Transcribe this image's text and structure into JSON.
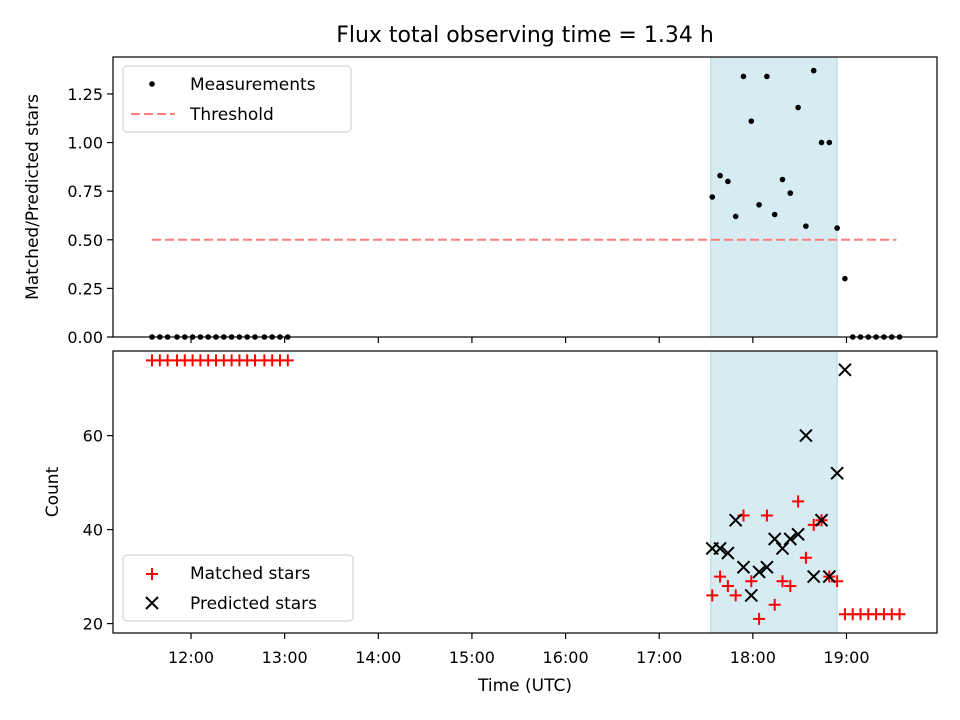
{
  "title": "Flux total observing time = 1.34 h",
  "colors": {
    "measurement": "#000000",
    "threshold": "#ff7f7f",
    "matched": "#ff0000",
    "predicted": "#000000",
    "span": "#add8e6"
  },
  "chart_data": [
    {
      "type": "scatter",
      "ylabel": "Matched/Predicted stars",
      "xlim": [
        "11:10",
        "19:58"
      ],
      "ylim": [
        0,
        1.44
      ],
      "yticks": [
        "0.00",
        "0.25",
        "0.50",
        "0.75",
        "1.00",
        "1.25"
      ],
      "xticks_shown": false,
      "highlight_span": [
        "17:33",
        "18:54"
      ],
      "legend": {
        "placement": "top-left",
        "entries": [
          "Measurements",
          "Threshold"
        ]
      },
      "threshold": {
        "name": "Threshold",
        "value": 0.5,
        "x": [
          "11:35",
          "19:32"
        ]
      },
      "series": [
        {
          "name": "Measurements",
          "marker": "dot",
          "points": [
            [
              "11:35",
              0
            ],
            [
              "11:40",
              0
            ],
            [
              "11:45",
              0
            ],
            [
              "11:51",
              0
            ],
            [
              "11:56",
              0
            ],
            [
              "12:01",
              0
            ],
            [
              "12:06",
              0
            ],
            [
              "12:11",
              0
            ],
            [
              "12:16",
              0
            ],
            [
              "12:21",
              0
            ],
            [
              "12:26",
              0
            ],
            [
              "12:31",
              0
            ],
            [
              "12:36",
              0
            ],
            [
              "12:41",
              0
            ],
            [
              "12:47",
              0
            ],
            [
              "12:52",
              0
            ],
            [
              "12:57",
              0
            ],
            [
              "13:02",
              0
            ],
            [
              "17:34",
              0.72
            ],
            [
              "17:39",
              0.83
            ],
            [
              "17:44",
              0.8
            ],
            [
              "17:49",
              0.62
            ],
            [
              "17:54",
              1.34
            ],
            [
              "17:59",
              1.11
            ],
            [
              "18:04",
              0.68
            ],
            [
              "18:09",
              1.34
            ],
            [
              "18:14",
              0.63
            ],
            [
              "18:19",
              0.81
            ],
            [
              "18:24",
              0.74
            ],
            [
              "18:29",
              1.18
            ],
            [
              "18:34",
              0.57
            ],
            [
              "18:39",
              1.37
            ],
            [
              "18:44",
              1.0
            ],
            [
              "18:49",
              1.0
            ],
            [
              "18:54",
              0.56
            ],
            [
              "18:59",
              0.3
            ],
            [
              "19:04",
              0
            ],
            [
              "19:09",
              0
            ],
            [
              "19:14",
              0
            ],
            [
              "19:19",
              0
            ],
            [
              "19:24",
              0
            ],
            [
              "19:29",
              0
            ],
            [
              "19:34",
              0
            ]
          ]
        }
      ]
    },
    {
      "type": "scatter",
      "ylabel": "Count",
      "xlabel": "Time (UTC)",
      "xlim": [
        "11:10",
        "19:58"
      ],
      "ylim": [
        18,
        78
      ],
      "yticks": [
        "20",
        "40",
        "60"
      ],
      "xticks": [
        "12:00",
        "13:00",
        "14:00",
        "15:00",
        "16:00",
        "17:00",
        "18:00",
        "19:00"
      ],
      "highlight_span": [
        "17:33",
        "18:54"
      ],
      "legend": {
        "placement": "bottom-left",
        "entries": [
          "Matched stars",
          "Predicted stars"
        ]
      },
      "series": [
        {
          "name": "Matched stars",
          "marker": "plus",
          "points": [
            [
              "11:35",
              76
            ],
            [
              "11:40",
              76
            ],
            [
              "11:45",
              76
            ],
            [
              "11:51",
              76
            ],
            [
              "11:56",
              76
            ],
            [
              "12:01",
              76
            ],
            [
              "12:06",
              76
            ],
            [
              "12:11",
              76
            ],
            [
              "12:16",
              76
            ],
            [
              "12:21",
              76
            ],
            [
              "12:26",
              76
            ],
            [
              "12:31",
              76
            ],
            [
              "12:36",
              76
            ],
            [
              "12:41",
              76
            ],
            [
              "12:47",
              76
            ],
            [
              "12:52",
              76
            ],
            [
              "12:57",
              76
            ],
            [
              "13:02",
              76
            ],
            [
              "17:34",
              26
            ],
            [
              "17:39",
              30
            ],
            [
              "17:44",
              28
            ],
            [
              "17:49",
              26
            ],
            [
              "17:54",
              43
            ],
            [
              "17:59",
              29
            ],
            [
              "18:04",
              21
            ],
            [
              "18:09",
              43
            ],
            [
              "18:14",
              24
            ],
            [
              "18:19",
              29
            ],
            [
              "18:24",
              28
            ],
            [
              "18:29",
              46
            ],
            [
              "18:34",
              34
            ],
            [
              "18:39",
              41
            ],
            [
              "18:44",
              42
            ],
            [
              "18:49",
              30
            ],
            [
              "18:54",
              29
            ],
            [
              "18:59",
              22
            ],
            [
              "19:04",
              22
            ],
            [
              "19:09",
              22
            ],
            [
              "19:14",
              22
            ],
            [
              "19:19",
              22
            ],
            [
              "19:24",
              22
            ],
            [
              "19:29",
              22
            ],
            [
              "19:34",
              22
            ]
          ]
        },
        {
          "name": "Predicted stars",
          "marker": "x",
          "points": [
            [
              "17:34",
              36
            ],
            [
              "17:39",
              36
            ],
            [
              "17:44",
              35
            ],
            [
              "17:49",
              42
            ],
            [
              "17:54",
              32
            ],
            [
              "17:59",
              26
            ],
            [
              "18:04",
              31
            ],
            [
              "18:09",
              32
            ],
            [
              "18:14",
              38
            ],
            [
              "18:19",
              36
            ],
            [
              "18:24",
              38
            ],
            [
              "18:29",
              39
            ],
            [
              "18:34",
              60
            ],
            [
              "18:39",
              30
            ],
            [
              "18:44",
              42
            ],
            [
              "18:49",
              30
            ],
            [
              "18:54",
              52
            ],
            [
              "18:59",
              74
            ]
          ]
        }
      ]
    }
  ]
}
